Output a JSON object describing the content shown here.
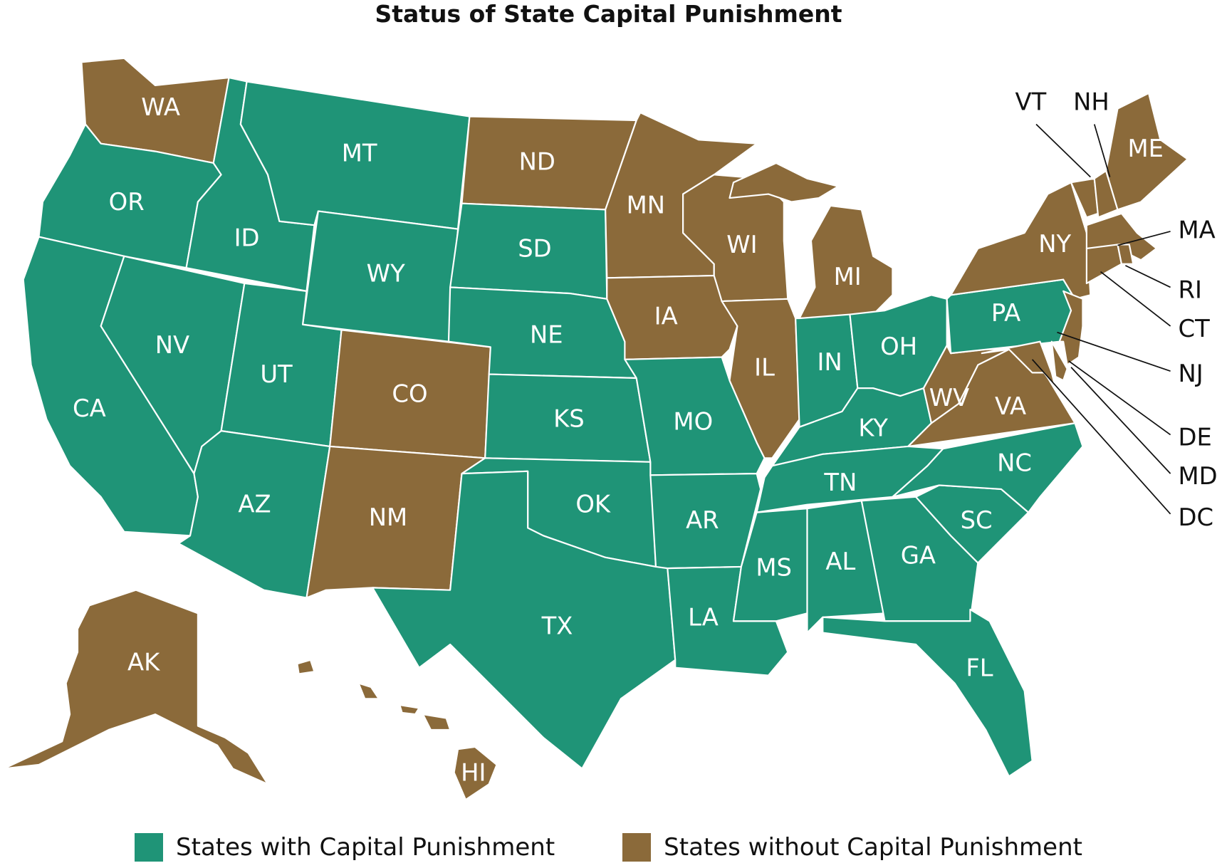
{
  "title": "Status of State Capital Punishment",
  "colors": {
    "with": "#1f9477",
    "without": "#8b6a3a"
  },
  "legend": [
    {
      "key": "with",
      "label": "States with Capital Punishment"
    },
    {
      "key": "without",
      "label": "States without Capital Punishment"
    }
  ],
  "states": [
    {
      "abbr": "WA",
      "status": "without"
    },
    {
      "abbr": "OR",
      "status": "with"
    },
    {
      "abbr": "CA",
      "status": "with"
    },
    {
      "abbr": "ID",
      "status": "with"
    },
    {
      "abbr": "NV",
      "status": "with"
    },
    {
      "abbr": "MT",
      "status": "with"
    },
    {
      "abbr": "WY",
      "status": "with"
    },
    {
      "abbr": "UT",
      "status": "with"
    },
    {
      "abbr": "AZ",
      "status": "with"
    },
    {
      "abbr": "CO",
      "status": "without"
    },
    {
      "abbr": "NM",
      "status": "without"
    },
    {
      "abbr": "ND",
      "status": "without"
    },
    {
      "abbr": "SD",
      "status": "with"
    },
    {
      "abbr": "NE",
      "status": "with"
    },
    {
      "abbr": "KS",
      "status": "with"
    },
    {
      "abbr": "OK",
      "status": "with"
    },
    {
      "abbr": "TX",
      "status": "with"
    },
    {
      "abbr": "MN",
      "status": "without"
    },
    {
      "abbr": "IA",
      "status": "without"
    },
    {
      "abbr": "MO",
      "status": "with"
    },
    {
      "abbr": "AR",
      "status": "with"
    },
    {
      "abbr": "LA",
      "status": "with"
    },
    {
      "abbr": "WI",
      "status": "without"
    },
    {
      "abbr": "IL",
      "status": "without"
    },
    {
      "abbr": "MI",
      "status": "without"
    },
    {
      "abbr": "IN",
      "status": "with"
    },
    {
      "abbr": "OH",
      "status": "with"
    },
    {
      "abbr": "KY",
      "status": "with"
    },
    {
      "abbr": "TN",
      "status": "with"
    },
    {
      "abbr": "MS",
      "status": "with"
    },
    {
      "abbr": "AL",
      "status": "with"
    },
    {
      "abbr": "GA",
      "status": "with"
    },
    {
      "abbr": "SC",
      "status": "with"
    },
    {
      "abbr": "NC",
      "status": "with"
    },
    {
      "abbr": "FL",
      "status": "with"
    },
    {
      "abbr": "VA",
      "status": "without"
    },
    {
      "abbr": "WV",
      "status": "without"
    },
    {
      "abbr": "PA",
      "status": "with"
    },
    {
      "abbr": "NY",
      "status": "without"
    },
    {
      "abbr": "NJ",
      "status": "without"
    },
    {
      "abbr": "VT",
      "status": "without"
    },
    {
      "abbr": "NH",
      "status": "without"
    },
    {
      "abbr": "ME",
      "status": "without"
    },
    {
      "abbr": "MA",
      "status": "without"
    },
    {
      "abbr": "CT",
      "status": "without"
    },
    {
      "abbr": "RI",
      "status": "without"
    },
    {
      "abbr": "DE",
      "status": "without"
    },
    {
      "abbr": "MD",
      "status": "without"
    },
    {
      "abbr": "DC",
      "status": "without"
    },
    {
      "abbr": "AK",
      "status": "without"
    },
    {
      "abbr": "HI",
      "status": "without"
    }
  ]
}
